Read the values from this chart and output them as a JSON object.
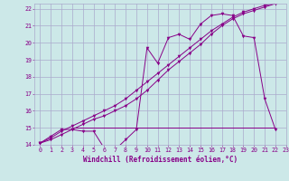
{
  "xlabel": "Windchill (Refroidissement éolien,°C)",
  "bg_color": "#cce8e8",
  "grid_color": "#aaaacc",
  "line_color": "#880088",
  "xlim": [
    -0.5,
    23
  ],
  "ylim": [
    14,
    22.3
  ],
  "yticks": [
    14,
    15,
    16,
    17,
    18,
    19,
    20,
    21,
    22
  ],
  "xticks": [
    0,
    1,
    2,
    3,
    4,
    5,
    6,
    7,
    8,
    9,
    10,
    11,
    12,
    13,
    14,
    15,
    16,
    17,
    18,
    19,
    20,
    21,
    22,
    23
  ],
  "series1_x": [
    0,
    1,
    2,
    3,
    4,
    5,
    6,
    7,
    8,
    9,
    10,
    11,
    12,
    13,
    14,
    15,
    16,
    17,
    18,
    19,
    20,
    21,
    22
  ],
  "series1_y": [
    14.1,
    14.5,
    14.9,
    14.9,
    14.8,
    14.8,
    13.8,
    13.7,
    14.3,
    14.9,
    19.7,
    18.8,
    20.3,
    20.5,
    20.2,
    21.1,
    21.6,
    21.7,
    21.6,
    20.4,
    20.3,
    16.7,
    14.9
  ],
  "series2_x": [
    0,
    1,
    2,
    3,
    4,
    5,
    6,
    7,
    8,
    9,
    10,
    11,
    12,
    13,
    14,
    15,
    16,
    17,
    18,
    19,
    20,
    21,
    22
  ],
  "series2_y": [
    14.1,
    14.4,
    14.8,
    15.1,
    15.4,
    15.7,
    16.0,
    16.3,
    16.7,
    17.2,
    17.7,
    18.2,
    18.7,
    19.2,
    19.7,
    20.2,
    20.7,
    21.1,
    21.5,
    21.8,
    22.0,
    22.2,
    22.3
  ],
  "series3_x": [
    0,
    1,
    2,
    3,
    4,
    5,
    6,
    7,
    8,
    9,
    10,
    11,
    12,
    13,
    14,
    15,
    16,
    17,
    18,
    19,
    20,
    21,
    22
  ],
  "series3_y": [
    14.1,
    14.3,
    14.6,
    14.9,
    15.2,
    15.5,
    15.7,
    16.0,
    16.3,
    16.7,
    17.2,
    17.8,
    18.4,
    18.9,
    19.4,
    19.9,
    20.5,
    21.0,
    21.4,
    21.7,
    21.9,
    22.1,
    22.3
  ],
  "hline_y": 15.0,
  "hline_x_start": 3.0,
  "hline_x_end": 22.0,
  "xlabel_fontsize": 5.5,
  "tick_fontsize": 4.8
}
